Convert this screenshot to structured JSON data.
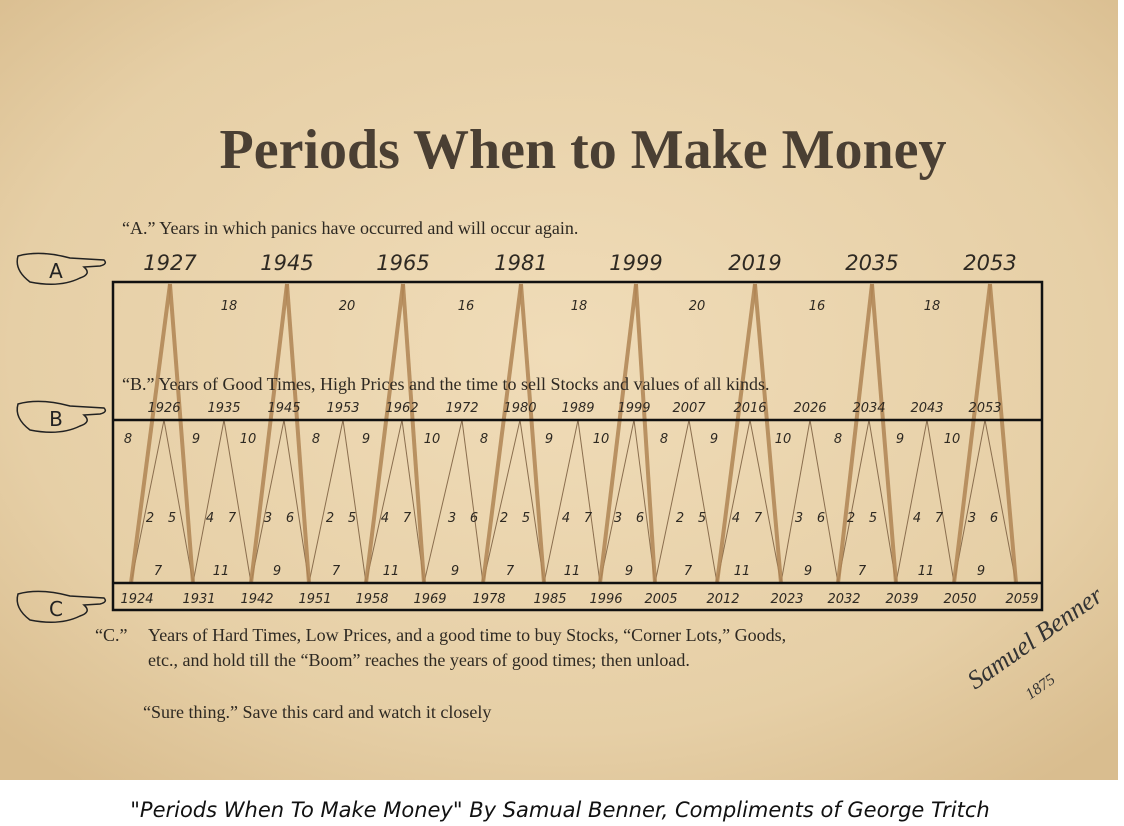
{
  "header": {
    "title": "Periods When to Make Money"
  },
  "section_a": {
    "letter": "A",
    "text": "“A.” Years in which panics have occurred and will occur again.",
    "years": [
      "1927",
      "1945",
      "1965",
      "1981",
      "1999",
      "2019",
      "2035",
      "2053"
    ],
    "intervals": [
      "18",
      "20",
      "16",
      "18",
      "20",
      "16",
      "18"
    ]
  },
  "section_b": {
    "letter": "B",
    "text": "“B.” Years of Good Times, High Prices and the time to sell Stocks and values of all kinds.",
    "years": [
      "1926",
      "1935",
      "1945",
      "1953",
      "1962",
      "1972",
      "1980",
      "1989",
      "1999",
      "2007",
      "2016",
      "2026",
      "2034",
      "2043",
      "2053"
    ],
    "top_numbers": [
      "8",
      "9",
      "10",
      "8",
      "9",
      "10",
      "8",
      "9",
      "10",
      "8",
      "9",
      "10",
      "8",
      "9",
      "10"
    ],
    "middle_numbers": [
      [
        "2",
        "5"
      ],
      [
        "4",
        "7"
      ],
      [
        "3",
        "6"
      ],
      [
        "2",
        "5"
      ],
      [
        "4",
        "7"
      ],
      [
        "3",
        "6"
      ],
      [
        "2",
        "5"
      ],
      [
        "4",
        "7"
      ],
      [
        "3",
        "6"
      ],
      [
        "2",
        "5"
      ],
      [
        "4",
        "7"
      ],
      [
        "3",
        "6"
      ],
      [
        "2",
        "5"
      ],
      [
        "4",
        "7"
      ],
      [
        "3",
        "6"
      ]
    ],
    "bottom_numbers": [
      "7",
      "11",
      "9",
      "7",
      "11",
      "9",
      "7",
      "11",
      "9",
      "7",
      "11",
      "9",
      "7",
      "11",
      "9"
    ]
  },
  "section_c": {
    "letter": "C",
    "label": "“C.”",
    "years": [
      "1924",
      "1931",
      "1942",
      "1951",
      "1958",
      "1969",
      "1978",
      "1985",
      "1996",
      "2005",
      "2012",
      "2023",
      "2032",
      "2039",
      "2050",
      "2059"
    ],
    "lines": [
      "Years of Hard Times, Low Prices, and a good time to buy Stocks, “Corner Lots,” Goods,",
      "etc., and hold till  the “Boom” reaches the years of good times; then unload."
    ]
  },
  "footer_note": "“Sure thing.” Save this card and watch it closely",
  "signature": {
    "name": "Samuel Benner",
    "year": "1875"
  },
  "caption": "\"Periods When To Make Money\" By Samual Benner, Compliments of George Tritch"
}
